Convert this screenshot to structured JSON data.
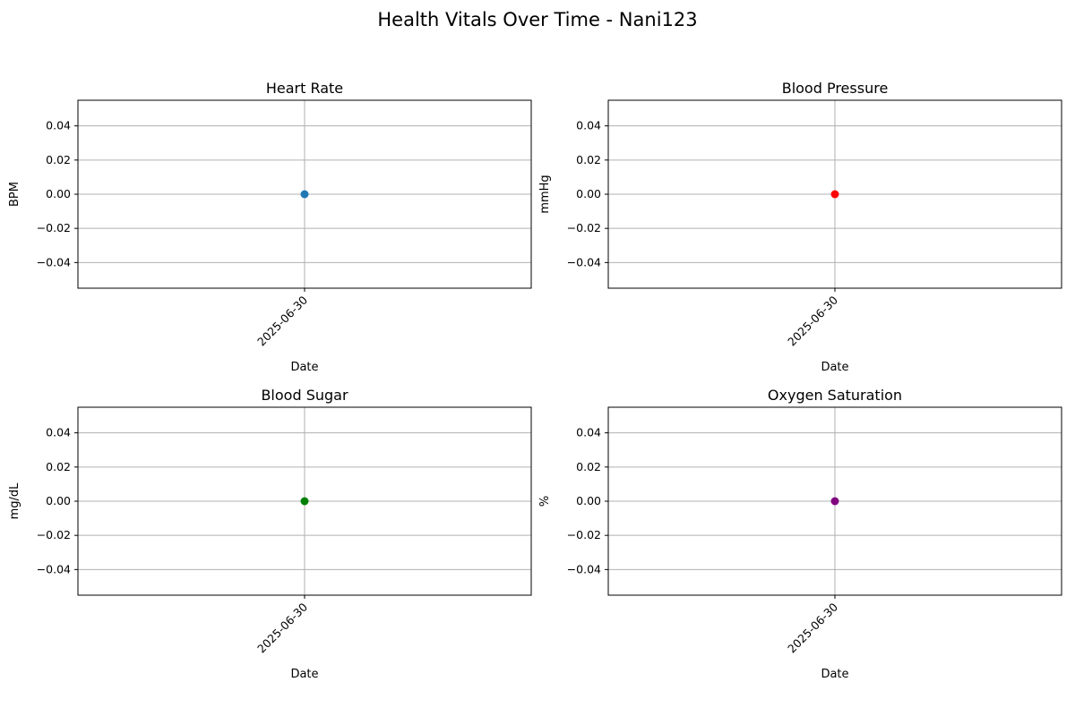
{
  "figure": {
    "title": "Health Vitals Over Time - Nani123"
  },
  "chart_data": [
    {
      "type": "line",
      "title": "Heart Rate",
      "xlabel": "Date",
      "ylabel": "BPM",
      "x": [
        "2025-06-30"
      ],
      "series": [
        {
          "values": [
            0
          ],
          "color": "#1f77b4"
        }
      ],
      "ylim": [
        -0.055,
        0.055
      ],
      "yticks": [
        -0.04,
        -0.02,
        0.0,
        0.02,
        0.04
      ],
      "ytick_labels": [
        "−0.04",
        "−0.02",
        "0.00",
        "0.02",
        "0.04"
      ],
      "grid": true
    },
    {
      "type": "line",
      "title": "Blood Pressure",
      "xlabel": "Date",
      "ylabel": "mmHg",
      "x": [
        "2025-06-30"
      ],
      "series": [
        {
          "values": [
            0
          ],
          "color": "#ff0000"
        }
      ],
      "ylim": [
        -0.055,
        0.055
      ],
      "yticks": [
        -0.04,
        -0.02,
        0.0,
        0.02,
        0.04
      ],
      "ytick_labels": [
        "−0.04",
        "−0.02",
        "0.00",
        "0.02",
        "0.04"
      ],
      "grid": true
    },
    {
      "type": "line",
      "title": "Blood Sugar",
      "xlabel": "Date",
      "ylabel": "mg/dL",
      "x": [
        "2025-06-30"
      ],
      "series": [
        {
          "values": [
            0
          ],
          "color": "#008000"
        }
      ],
      "ylim": [
        -0.055,
        0.055
      ],
      "yticks": [
        -0.04,
        -0.02,
        0.0,
        0.02,
        0.04
      ],
      "ytick_labels": [
        "−0.04",
        "−0.02",
        "0.00",
        "0.02",
        "0.04"
      ],
      "grid": true
    },
    {
      "type": "line",
      "title": "Oxygen Saturation",
      "xlabel": "Date",
      "ylabel": "%",
      "x": [
        "2025-06-30"
      ],
      "series": [
        {
          "values": [
            0
          ],
          "color": "#800080"
        }
      ],
      "ylim": [
        -0.055,
        0.055
      ],
      "yticks": [
        -0.04,
        -0.02,
        0.0,
        0.02,
        0.04
      ],
      "ytick_labels": [
        "−0.04",
        "−0.02",
        "0.00",
        "0.02",
        "0.04"
      ],
      "grid": true
    }
  ]
}
